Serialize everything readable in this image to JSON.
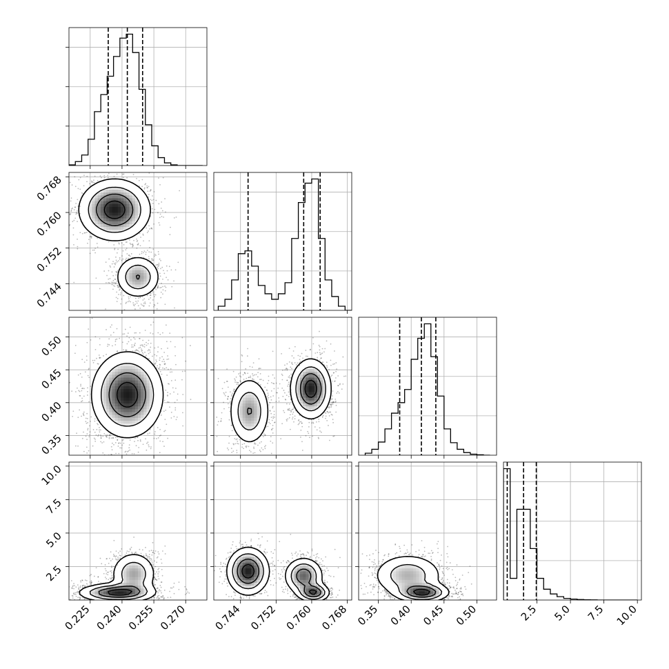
{
  "chart_data": {
    "type": "corner",
    "n_parameters": 4,
    "axis_labels": [
      "",
      "",
      "",
      ""
    ],
    "grid": true,
    "parameters": [
      {
        "index": 0,
        "range": [
          0.215,
          0.28
        ],
        "ticks": [
          0.225,
          0.24,
          0.255,
          0.27
        ],
        "tick_labels": [
          "0.225",
          "0.240",
          "0.255",
          "0.270"
        ],
        "quantiles": [
          0.2335,
          0.2425,
          0.2497
        ],
        "histogram": {
          "bin_edges": [
            0.215,
            0.218,
            0.221,
            0.224,
            0.227,
            0.23,
            0.233,
            0.236,
            0.239,
            0.242,
            0.245,
            0.248,
            0.251,
            0.254,
            0.257,
            0.26,
            0.263,
            0.266,
            0.269,
            0.272,
            0.275,
            0.278
          ],
          "density": [
            0.005,
            0.03,
            0.08,
            0.2,
            0.41,
            0.54,
            0.68,
            0.83,
            0.97,
            1.0,
            0.86,
            0.58,
            0.31,
            0.15,
            0.06,
            0.02,
            0.005,
            0.0,
            0.0,
            0.0,
            0.0
          ]
        }
      },
      {
        "index": 1,
        "range": [
          0.738,
          0.769
        ],
        "ticks": [
          0.744,
          0.752,
          0.76,
          0.768
        ],
        "tick_labels": [
          "0.744",
          "0.752",
          "0.760",
          "0.768"
        ],
        "quantiles": [
          0.7457,
          0.7582,
          0.7619
        ],
        "histogram": {
          "bin_edges": [
            0.739,
            0.7405,
            0.742,
            0.7435,
            0.745,
            0.7465,
            0.748,
            0.7495,
            0.751,
            0.7525,
            0.754,
            0.7555,
            0.757,
            0.7585,
            0.76,
            0.7615,
            0.763,
            0.7645,
            0.766,
            0.7675,
            0.769
          ],
          "density": [
            0.03,
            0.08,
            0.22,
            0.41,
            0.43,
            0.32,
            0.18,
            0.12,
            0.08,
            0.12,
            0.2,
            0.52,
            0.78,
            0.92,
            0.95,
            0.52,
            0.22,
            0.1,
            0.03,
            0.0
          ]
        }
      },
      {
        "index": 2,
        "range": [
          0.32,
          0.53
        ],
        "ticks": [
          0.35,
          0.4,
          0.45,
          0.5
        ],
        "tick_labels": [
          "0.35",
          "0.40",
          "0.45",
          "0.50"
        ],
        "quantiles": [
          0.3825,
          0.4155,
          0.4375
        ],
        "histogram": {
          "bin_edges": [
            0.33,
            0.34,
            0.35,
            0.36,
            0.37,
            0.38,
            0.39,
            0.4,
            0.41,
            0.42,
            0.43,
            0.44,
            0.45,
            0.46,
            0.47,
            0.48,
            0.49,
            0.5,
            0.51,
            0.52
          ],
          "density": [
            0.015,
            0.045,
            0.1,
            0.2,
            0.32,
            0.4,
            0.5,
            0.73,
            0.89,
            1.0,
            0.75,
            0.45,
            0.2,
            0.095,
            0.045,
            0.02,
            0.008,
            0.003,
            0.0
          ]
        }
      },
      {
        "index": 3,
        "range": [
          0.0,
          10.3
        ],
        "ticks": [
          2.5,
          5.0,
          7.5,
          10.0
        ],
        "tick_labels": [
          "2.5",
          "5.0",
          "7.5",
          "10.0"
        ],
        "quantiles": [
          0.28,
          1.5,
          2.45
        ],
        "histogram": {
          "bin_edges": [
            0.0,
            0.5,
            1.0,
            1.5,
            2.0,
            2.5,
            3.0,
            3.5,
            4.0,
            4.5,
            5.0,
            5.5,
            6.0,
            6.5,
            7.0,
            7.5,
            8.0,
            8.5,
            9.0,
            9.5,
            10.0
          ],
          "density": [
            0.97,
            0.16,
            0.67,
            0.67,
            0.38,
            0.16,
            0.08,
            0.045,
            0.025,
            0.012,
            0.007,
            0.004,
            0.002,
            0.001,
            0.0,
            0.0,
            0.0,
            0.0,
            0.0,
            0.0
          ]
        }
      }
    ],
    "joint_panels": [
      {
        "row": 1,
        "col": 0,
        "modes": [
          {
            "center": [
              0.2365,
              0.7606
            ],
            "sigma": [
              0.0085,
              0.0035
            ],
            "rotation": -0.1,
            "weight": 0.62
          },
          {
            "center": [
              0.2475,
              0.7455
            ],
            "sigma": [
              0.0055,
              0.0025
            ],
            "rotation": 0.25,
            "weight": 0.38
          }
        ]
      },
      {
        "row": 2,
        "col": 0,
        "modes": [
          {
            "center": [
              0.2425,
              0.412
            ],
            "sigma": [
              0.0085,
              0.033
            ],
            "rotation": -0.55,
            "weight": 1.0
          }
        ]
      },
      {
        "row": 2,
        "col": 1,
        "modes": [
          {
            "center": [
              0.746,
              0.387
            ],
            "sigma": [
              0.0024,
              0.027
            ],
            "rotation": 0.0,
            "weight": 0.38
          },
          {
            "center": [
              0.7598,
              0.421
            ],
            "sigma": [
              0.0023,
              0.023
            ],
            "rotation": 0.0,
            "weight": 0.62
          }
        ]
      },
      {
        "row": 3,
        "col": 0,
        "modes": [
          {
            "center": [
              0.2455,
              1.95
            ],
            "sigma": [
              0.0055,
              0.85
            ],
            "rotation": 0.0,
            "weight": 0.38
          },
          {
            "center": [
              0.2375,
              0.55
            ],
            "sigma": [
              0.009,
              0.35
            ],
            "rotation": 0.0,
            "weight": 0.62
          }
        ]
      },
      {
        "row": 3,
        "col": 1,
        "modes": [
          {
            "center": [
              0.7457,
              2.15
            ],
            "sigma": [
              0.0024,
              0.9
            ],
            "rotation": 0.0,
            "weight": 0.38
          },
          {
            "center": [
              0.7582,
              1.8
            ],
            "sigma": [
              0.0022,
              0.7
            ],
            "rotation": 0.0,
            "weight": 0.3
          },
          {
            "center": [
              0.7605,
              0.55
            ],
            "sigma": [
              0.0018,
              0.35
            ],
            "rotation": 0.0,
            "weight": 0.32
          }
        ]
      },
      {
        "row": 3,
        "col": 2,
        "modes": [
          {
            "center": [
              0.395,
              1.85
            ],
            "sigma": [
              0.028,
              0.85
            ],
            "rotation": 0.0,
            "weight": 0.38
          },
          {
            "center": [
              0.418,
              0.55
            ],
            "sigma": [
              0.02,
              0.35
            ],
            "rotation": 0.0,
            "weight": 0.62
          }
        ]
      }
    ]
  }
}
